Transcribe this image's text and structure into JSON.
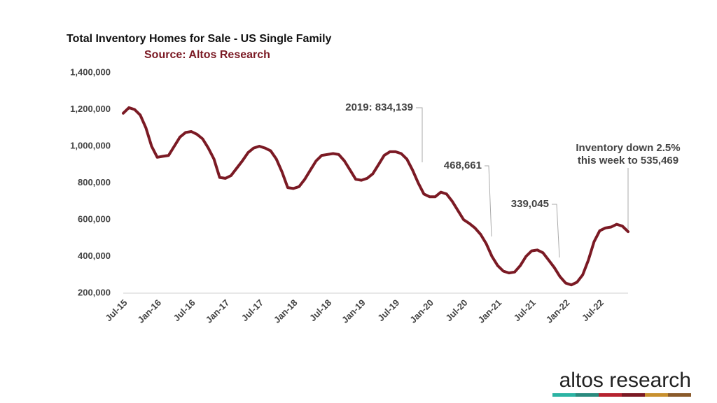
{
  "chart_data": {
    "type": "line",
    "title": "Total Inventory Homes for Sale - US Single Family",
    "subtitle": "Source: Altos Research",
    "categories": [
      "Jul-15",
      null,
      null,
      null,
      null,
      null,
      "Jan-16",
      null,
      null,
      null,
      null,
      null,
      "Jul-16",
      null,
      null,
      null,
      null,
      null,
      "Jan-17",
      null,
      null,
      null,
      null,
      null,
      "Jul-17",
      null,
      null,
      null,
      null,
      null,
      "Jan-18",
      null,
      null,
      null,
      null,
      null,
      "Jul-18",
      null,
      null,
      null,
      null,
      null,
      "Jan-19",
      null,
      null,
      null,
      null,
      null,
      "Jul-19",
      null,
      null,
      null,
      null,
      null,
      "Jan-20",
      null,
      null,
      null,
      null,
      null,
      "Jul-20",
      null,
      null,
      null,
      null,
      null,
      "Jan-21",
      null,
      null,
      null,
      null,
      null,
      "Jul-21",
      null,
      null,
      null,
      null,
      null,
      "Jan-22",
      null,
      null,
      null,
      null,
      null,
      "Jul-22",
      null,
      null,
      null,
      null,
      null
    ],
    "series": [
      {
        "name": "Inventory",
        "color": "#7b1a24",
        "values": [
          1180000,
          1210000,
          1200000,
          1170000,
          1100000,
          1000000,
          940000,
          945000,
          950000,
          1000000,
          1050000,
          1075000,
          1080000,
          1065000,
          1040000,
          990000,
          930000,
          830000,
          825000,
          840000,
          880000,
          920000,
          965000,
          990000,
          1000000,
          990000,
          975000,
          930000,
          860000,
          775000,
          770000,
          780000,
          820000,
          870000,
          920000,
          950000,
          955000,
          960000,
          955000,
          920000,
          870000,
          820000,
          815000,
          825000,
          850000,
          900000,
          950000,
          970000,
          970000,
          960000,
          930000,
          870000,
          800000,
          740000,
          725000,
          725000,
          750000,
          740000,
          700000,
          650000,
          600000,
          580000,
          555000,
          520000,
          469000,
          400000,
          350000,
          320000,
          310000,
          315000,
          350000,
          400000,
          430000,
          435000,
          420000,
          380000,
          339000,
          290000,
          255000,
          245000,
          260000,
          300000,
          380000,
          480000,
          540000,
          555000,
          560000,
          575000,
          565000,
          535000
        ]
      }
    ],
    "ylim": [
      200000,
      1400000
    ],
    "yticks": [
      {
        "value": 200000,
        "label": "200,000"
      },
      {
        "value": 400000,
        "label": "400,000"
      },
      {
        "value": 600000,
        "label": "600,000"
      },
      {
        "value": 800000,
        "label": "800,000"
      },
      {
        "value": 1000000,
        "label": "1,000,000"
      },
      {
        "value": 1200000,
        "label": "1,200,000"
      },
      {
        "value": 1400000,
        "label": "1,400,000"
      }
    ],
    "annotations": [
      "2019:  834,139",
      "468,661",
      "339,045",
      "Inventory down 2.5%",
      "this week to 535,469"
    ],
    "logo": "altos research"
  }
}
